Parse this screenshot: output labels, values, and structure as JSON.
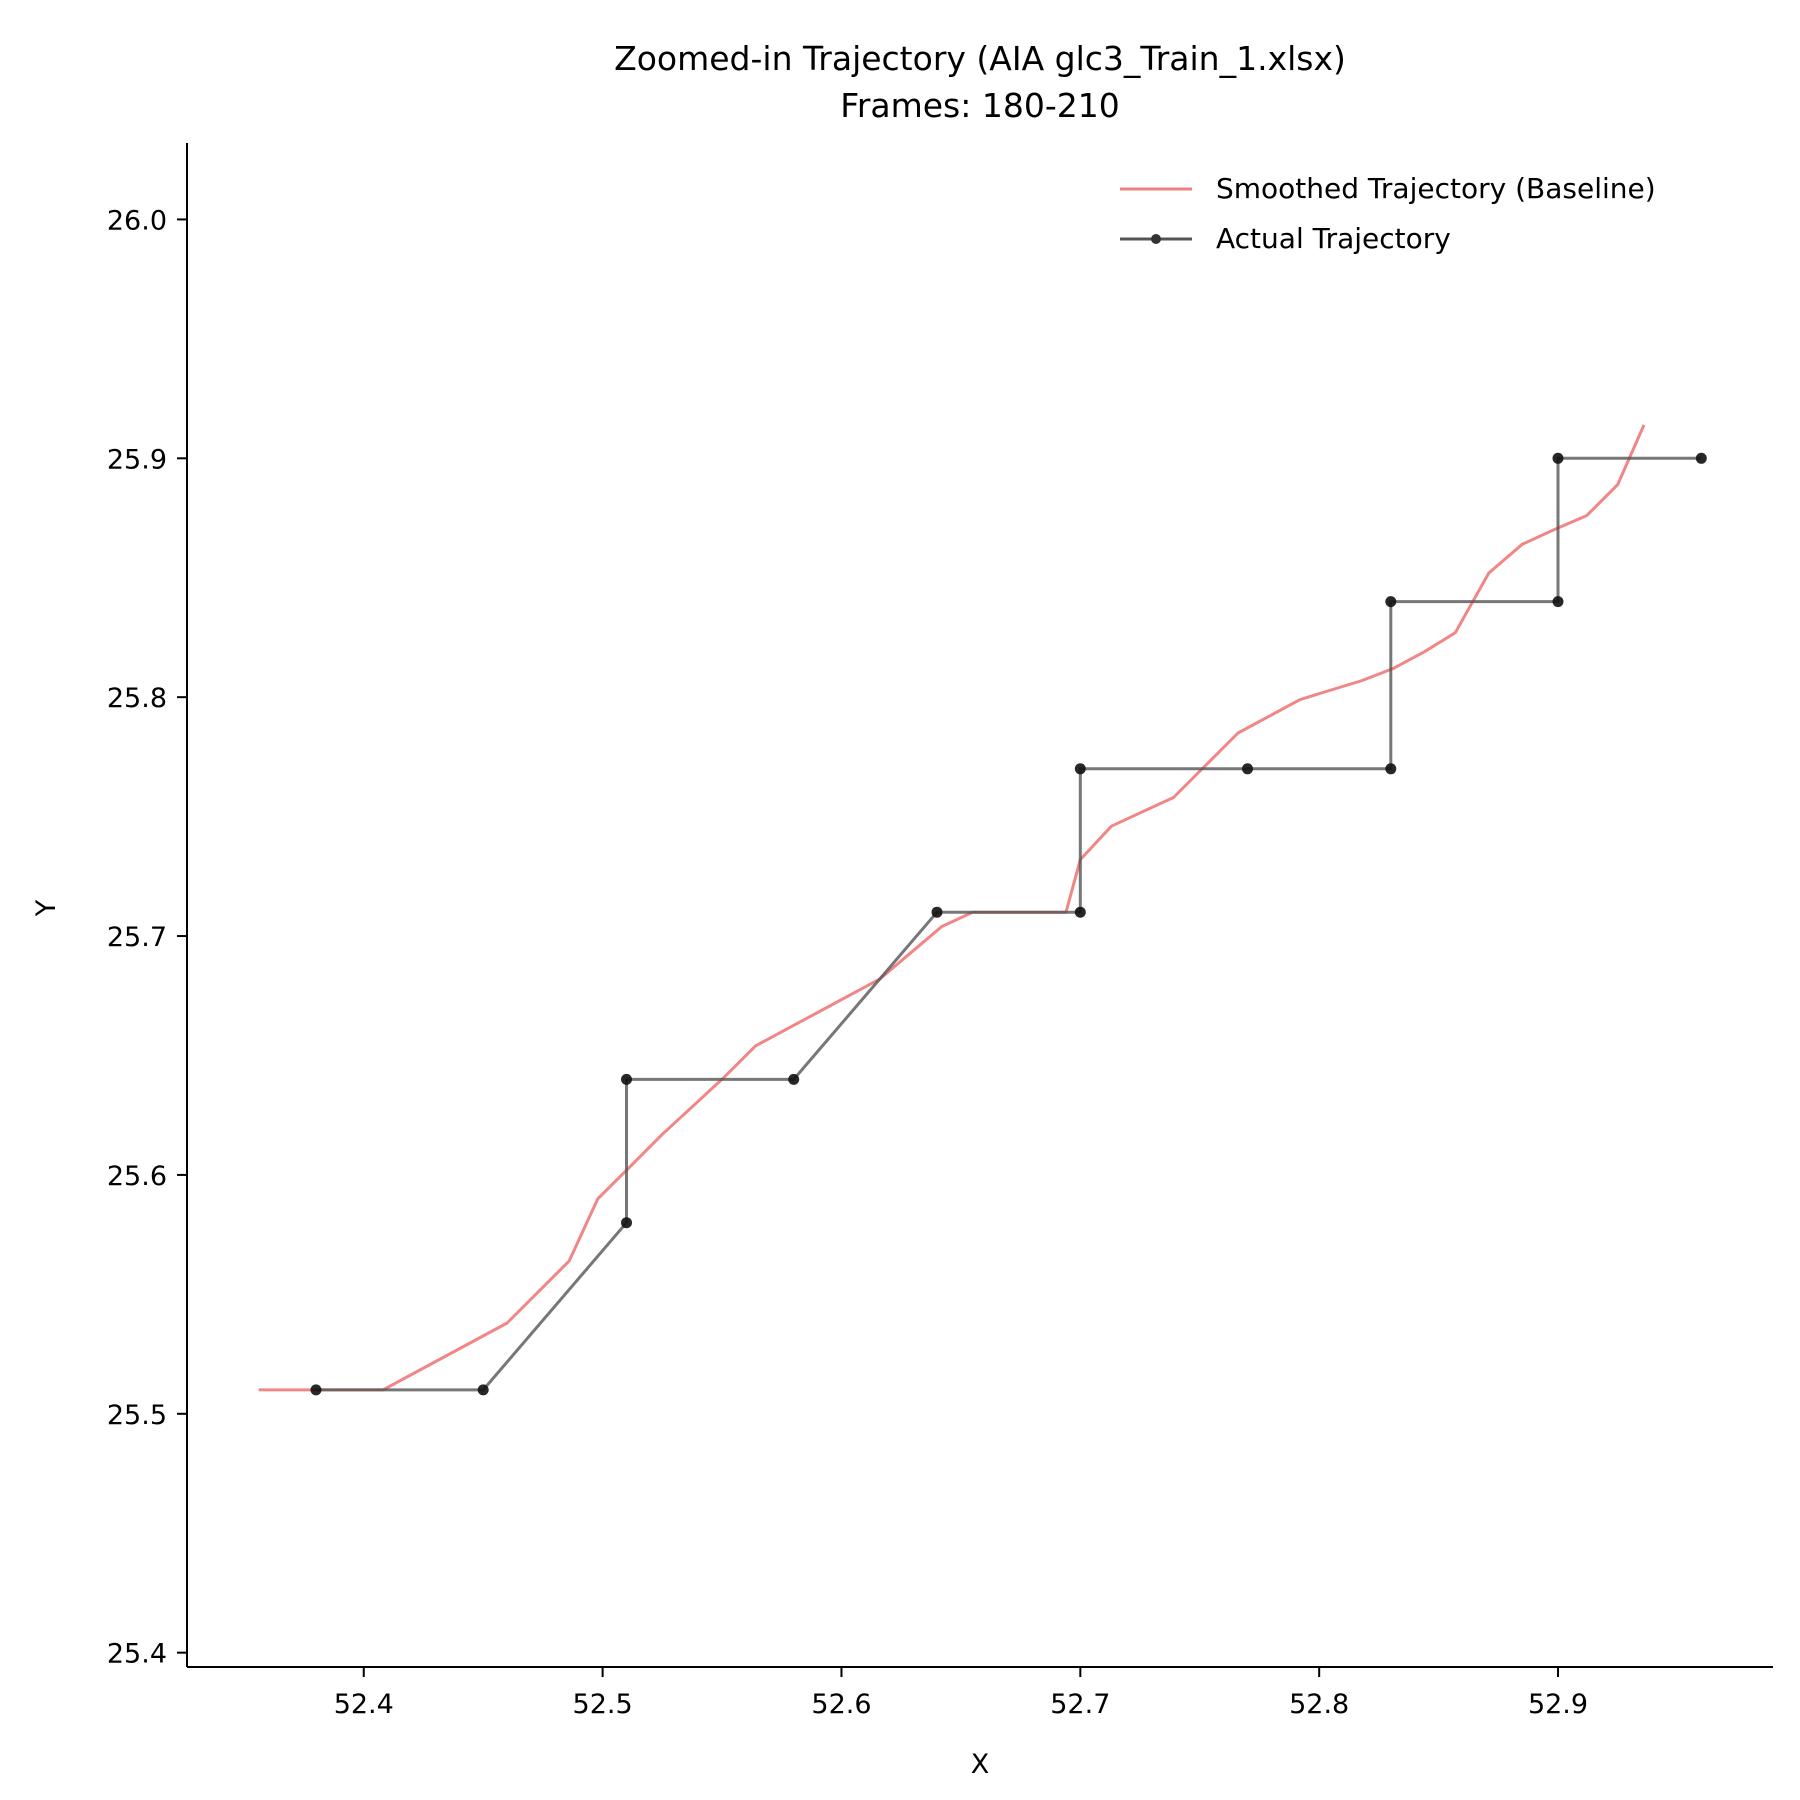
{
  "chart_data": {
    "type": "line",
    "title": "Zoomed-in Trajectory (AIA glc3_Train_1.xlsx)",
    "subtitle": "Frames: 180-210",
    "xlabel": "X",
    "ylabel": "Y",
    "xlim": [
      52.326,
      52.99
    ],
    "ylim": [
      25.394,
      26.032
    ],
    "xticks": [
      52.4,
      52.5,
      52.6,
      52.7,
      52.8,
      52.9
    ],
    "xtick_labels": [
      "52.4",
      "52.5",
      "52.6",
      "52.7",
      "52.8",
      "52.9"
    ],
    "yticks": [
      25.4,
      25.5,
      25.6,
      25.7,
      25.8,
      25.9,
      26.0
    ],
    "ytick_labels": [
      "25.4",
      "25.5",
      "25.6",
      "25.7",
      "25.8",
      "25.9",
      "26.0"
    ],
    "grid": false,
    "legend_position": "top-right",
    "series": [
      {
        "name": "Smoothed Trajectory (Baseline)",
        "color": "#f08080",
        "markers": false,
        "x": [
          52.356,
          52.38,
          52.408,
          52.434,
          52.46,
          52.486,
          52.498,
          52.512,
          52.525,
          52.538,
          52.551,
          52.564,
          52.577,
          52.59,
          52.603,
          52.616,
          52.629,
          52.642,
          52.655,
          52.668,
          52.681,
          52.694,
          52.7,
          52.713,
          52.726,
          52.739,
          52.752,
          52.766,
          52.779,
          52.792,
          52.805,
          52.818,
          52.831,
          52.844,
          52.857,
          52.871,
          52.885,
          52.898,
          52.912,
          52.925,
          52.936
        ],
        "y": [
          25.51,
          25.51,
          25.51,
          25.524,
          25.538,
          25.564,
          25.59,
          25.604,
          25.617,
          25.629,
          25.641,
          25.654,
          25.661,
          25.668,
          25.675,
          25.682,
          25.693,
          25.704,
          25.71,
          25.71,
          25.71,
          25.71,
          25.732,
          25.746,
          25.752,
          25.758,
          25.771,
          25.785,
          25.792,
          25.799,
          25.803,
          25.807,
          25.812,
          25.819,
          25.827,
          25.852,
          25.864,
          25.87,
          25.876,
          25.889,
          25.914
        ]
      },
      {
        "name": "Actual Trajectory",
        "color": "#555555",
        "markers": true,
        "x": [
          52.38,
          52.45,
          52.51,
          52.51,
          52.58,
          52.64,
          52.7,
          52.7,
          52.77,
          52.83,
          52.83,
          52.9,
          52.9,
          52.96
        ],
        "y": [
          25.51,
          25.51,
          25.58,
          25.64,
          25.64,
          25.71,
          25.71,
          25.77,
          25.77,
          25.77,
          25.84,
          25.84,
          25.9,
          25.9
        ]
      }
    ]
  }
}
